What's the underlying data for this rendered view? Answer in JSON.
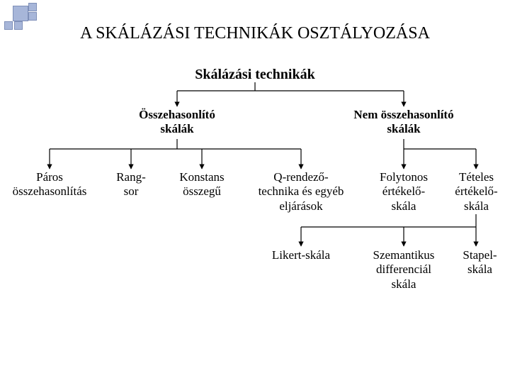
{
  "colors": {
    "background": "#ffffff",
    "text": "#000000",
    "line": "#000000",
    "corner_fill": "#a7b6d9",
    "corner_border": "#7e8fb8"
  },
  "font_family": "Times New Roman",
  "title": "A SKÁLÁZÁSI TECHNIKÁK OSZTÁLYOZÁSA",
  "root": "Skálázási technikák",
  "level1": {
    "left": "Összehasonlító\nskálák",
    "right": "Nem összehasonlító\nskálák"
  },
  "level2": {
    "cmp1": "Páros\nösszehasonlítás",
    "cmp2": "Rang-\nsor",
    "cmp3": "Konstans\nösszegű",
    "cmp4": "Q-rendező-\ntechnika és egyéb\neljárások",
    "non1": "Folytonos\nértékelő-\nskála",
    "non2": "Tételes\nértékelő-\nskála"
  },
  "level3": {
    "it1": "Likert-skála",
    "it2": "Szemantikus\ndifferenciál\nskála",
    "it3": "Stapel-\nskála"
  }
}
